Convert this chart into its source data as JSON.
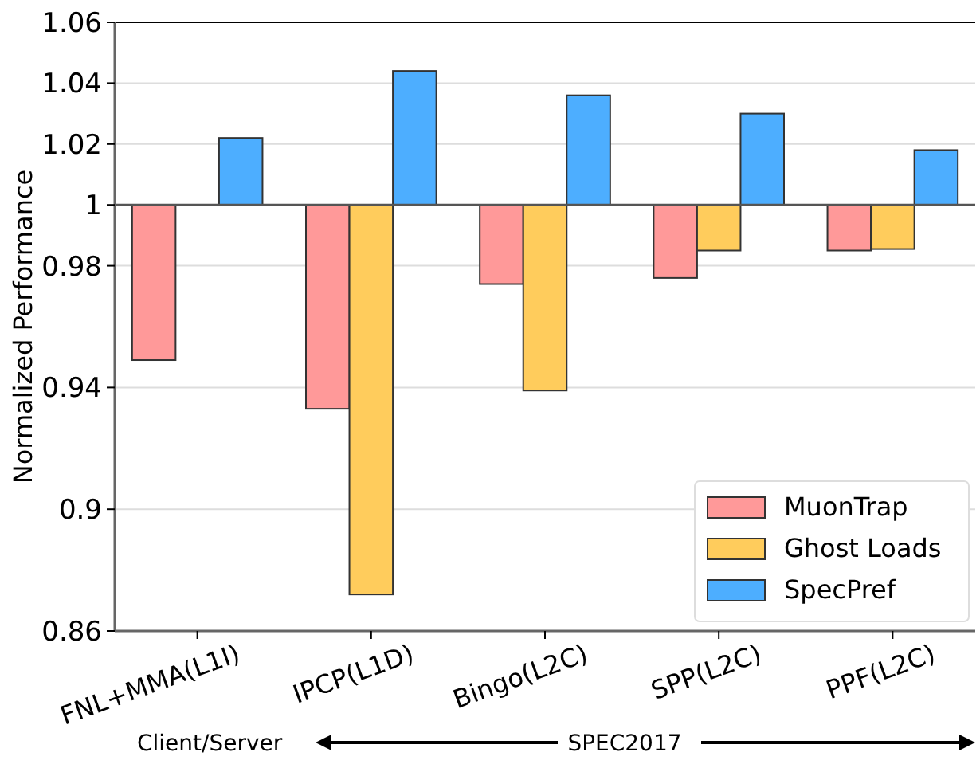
{
  "chart_data": {
    "type": "bar",
    "ylabel": "Normalized Performance",
    "categories": [
      "FNL+MMA(L1I)",
      "IPCP(L1D)",
      "Bingo(L2C)",
      "SPP(L2C)",
      "PPF(L2C)"
    ],
    "series": [
      {
        "name": "MuonTrap",
        "color": "#ff9999",
        "base": [
          1,
          1,
          1,
          1,
          1
        ],
        "values": [
          -0.051,
          -0.067,
          -0.026,
          -0.024,
          -0.015
        ]
      },
      {
        "name": "Ghost Loads",
        "color": "#ffcc5c",
        "base": [
          null,
          1,
          1,
          1,
          1
        ],
        "values": [
          null,
          -0.128,
          -0.061,
          -0.015,
          -0.0145
        ]
      },
      {
        "name": "SpecPref",
        "color": "#4daeff",
        "base": [
          1,
          1,
          1,
          1,
          1
        ],
        "values": [
          0.022,
          0.044,
          0.036,
          0.03,
          0.018
        ]
      }
    ],
    "ylim": [
      0.86,
      1.06
    ],
    "yticks": [
      0.86,
      0.9,
      0.94,
      0.98,
      1,
      1.02,
      1.04,
      1.06
    ],
    "ref_lines": [
      {
        "axis": "y",
        "value": 1,
        "color": "#555555"
      }
    ],
    "grid": "y",
    "legend": "bottom right",
    "annotations": [
      "Client/Server",
      "SPEC2017"
    ]
  }
}
